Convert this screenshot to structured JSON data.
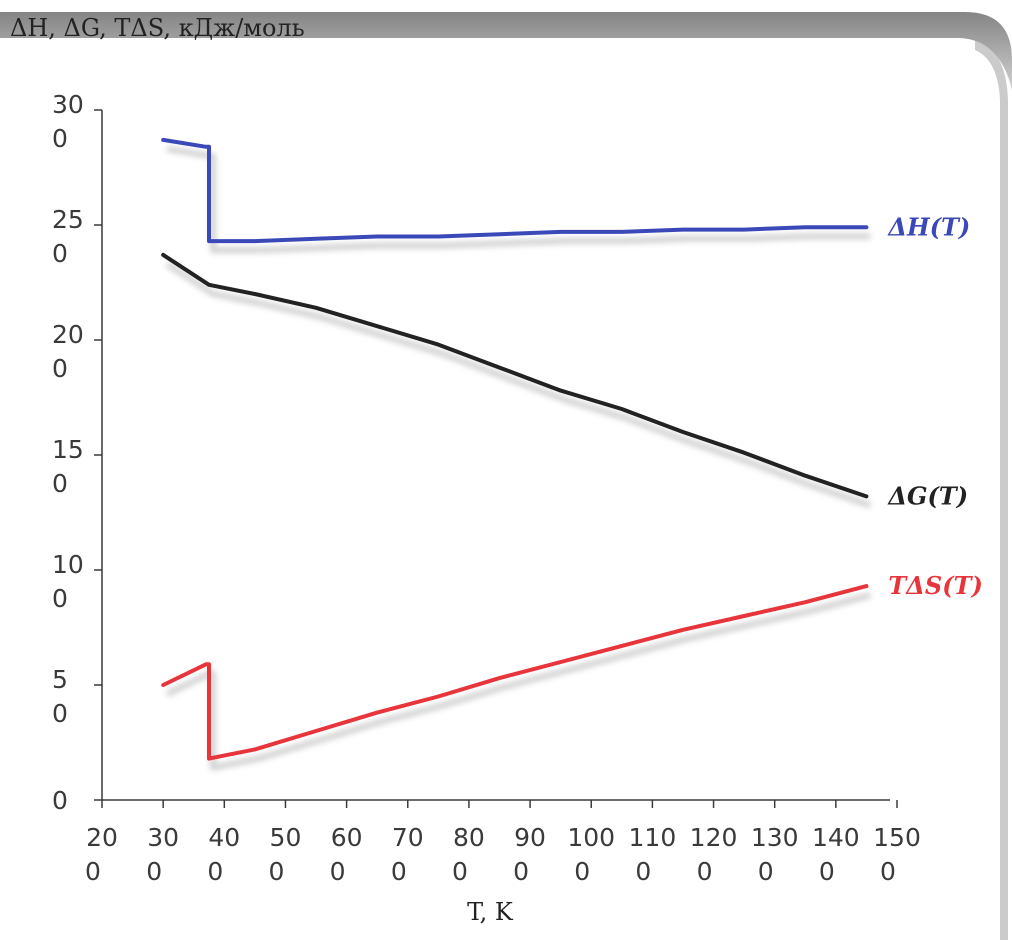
{
  "chart_data": {
    "type": "line",
    "ylabel": "ΔH, ΔG, TΔS, кДж/моль",
    "xlabel": "T, K",
    "xlim": [
      200,
      1500
    ],
    "ylim": [
      0,
      300
    ],
    "x_ticks": [
      {
        "top": "20",
        "bottom": "0"
      },
      {
        "top": "30",
        "bottom": "0"
      },
      {
        "top": "40",
        "bottom": "0"
      },
      {
        "top": "50",
        "bottom": "0"
      },
      {
        "top": "60",
        "bottom": "0"
      },
      {
        "top": "70",
        "bottom": "0"
      },
      {
        "top": "80",
        "bottom": "0"
      },
      {
        "top": "90",
        "bottom": "0"
      },
      {
        "top": "100",
        "bottom": "0"
      },
      {
        "top": "110",
        "bottom": "0"
      },
      {
        "top": "120",
        "bottom": "0"
      },
      {
        "top": "130",
        "bottom": "0"
      },
      {
        "top": "140",
        "bottom": "0"
      },
      {
        "top": "150",
        "bottom": "0"
      }
    ],
    "y_ticks": [
      {
        "top": "30",
        "bottom": "0"
      },
      {
        "top": "25",
        "bottom": "0"
      },
      {
        "top": "20",
        "bottom": "0"
      },
      {
        "top": "15",
        "bottom": "0"
      },
      {
        "top": "10",
        "bottom": "0"
      },
      {
        "top": "5",
        "bottom": "0"
      },
      {
        "top": "0",
        "bottom": ""
      }
    ],
    "grid": false,
    "series": [
      {
        "name": "ΔH(T)",
        "color": "#3b48b8",
        "x": [
          300,
          370,
          375,
          375,
          450,
          550,
          650,
          750,
          850,
          950,
          1050,
          1150,
          1250,
          1350,
          1450
        ],
        "y": [
          287,
          284,
          284,
          243,
          243,
          244,
          245,
          245,
          246,
          247,
          247,
          248,
          248,
          249,
          249
        ]
      },
      {
        "name": "ΔG(T)",
        "color": "#222222",
        "x": [
          300,
          375,
          450,
          550,
          650,
          750,
          850,
          950,
          1050,
          1150,
          1250,
          1350,
          1450
        ],
        "y": [
          237,
          224,
          220,
          214,
          206,
          198,
          188,
          178,
          170,
          160,
          151,
          141,
          132
        ]
      },
      {
        "name": "TΔS(T)",
        "color": "#e8343b",
        "x": [
          300,
          370,
          375,
          375,
          450,
          550,
          650,
          750,
          850,
          950,
          1050,
          1150,
          1250,
          1350,
          1450
        ],
        "y": [
          50,
          59,
          59,
          18,
          22,
          30,
          38,
          45,
          53,
          60,
          67,
          74,
          80,
          86,
          93
        ]
      }
    ]
  }
}
